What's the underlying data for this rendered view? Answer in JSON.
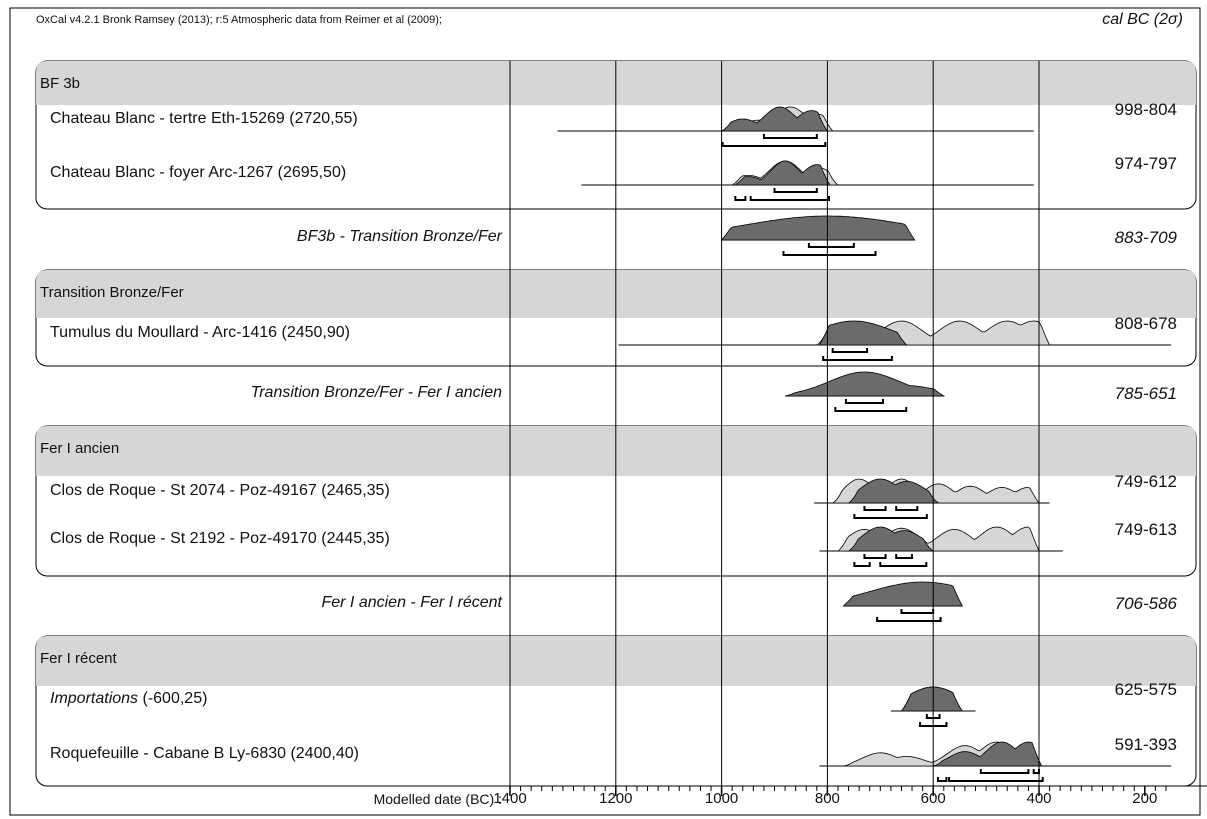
{
  "header": {
    "software": "OxCal v4.2.1 Bronk Ramsey (2013); r:5 Atmospheric data from Reimer et al (2009);",
    "unit_label": "cal BC (2σ)"
  },
  "colors": {
    "prior": "#d6d6d6",
    "posterior": "#6b6b6b",
    "band": "#d6d6d6",
    "line": "#000000"
  },
  "chart_data": {
    "type": "oxcal-multiplot",
    "xlabel": "Modelled date (BC) :",
    "xlim": [
      1400,
      150
    ],
    "x_ticks": [
      1400,
      1200,
      1000,
      800,
      600,
      400,
      200
    ],
    "sections": [
      {
        "title": "BF 3b",
        "rows": [
          {
            "label": "Chateau Blanc - tertre Eth-15269 (2720,55)",
            "range": "998-804",
            "extent": [
              1310,
              410
            ],
            "prior": {
              "start": 1000,
              "end": 790,
              "peaks": [
                [
                  930,
                  0.45
                ],
                [
                  870,
                  1.0
                ],
                [
                  820,
                  0.7
                ]
              ]
            },
            "posterior": {
              "start": 1000,
              "end": 800,
              "peaks": [
                [
                  960,
                  0.5
                ],
                [
                  890,
                  1.0
                ],
                [
                  830,
                  0.85
                ]
              ]
            },
            "brackets": [
              [
                [
                  920,
                  820
                ]
              ],
              [
                [
                  998,
                  804
                ]
              ]
            ]
          },
          {
            "label": "Chateau Blanc - foyer Arc-1267 (2695,50)",
            "range": "974-797",
            "extent": [
              1265,
              410
            ],
            "prior": {
              "start": 980,
              "end": 780,
              "peaks": [
                [
                  950,
                  0.4
                ],
                [
                  880,
                  1.0
                ],
                [
                  820,
                  0.75
                ]
              ]
            },
            "posterior": {
              "start": 975,
              "end": 795,
              "peaks": [
                [
                  950,
                  0.35
                ],
                [
                  880,
                  1.0
                ],
                [
                  820,
                  0.85
                ]
              ]
            },
            "brackets": [
              [
                [
                  900,
                  820
                ]
              ],
              [
                [
                  974,
                  955
                ],
                [
                  945,
                  797
                ]
              ]
            ]
          }
        ]
      },
      {
        "boundary": "BF3b - Transition Bronze/Fer",
        "range": "883-709",
        "extent": [
          1000,
          635
        ],
        "posterior": {
          "start": 1000,
          "end": 635,
          "peaks": [
            [
              800,
              1.0
            ]
          ]
        },
        "brackets": [
          [
            [
              835,
              750
            ]
          ],
          [
            [
              883,
              709
            ]
          ]
        ]
      },
      {
        "title": "Transition Bronze/Fer",
        "rows": [
          {
            "label": "Tumulus du Moullard - Arc-1416 (2450,90)",
            "range": "808-678",
            "extent": [
              1195,
              150
            ],
            "prior": {
              "start": 820,
              "end": 380,
              "peaks": [
                [
                  760,
                  0.9
                ],
                [
                  660,
                  1.0
                ],
                [
                  550,
                  1.0
                ],
                [
                  460,
                  1.0
                ],
                [
                  410,
                  1.0
                ]
              ]
            },
            "posterior": {
              "start": 815,
              "end": 650,
              "peaks": [
                [
                  750,
                  1.0
                ]
              ]
            },
            "brackets": [
              [
                [
                  790,
                  725
                ]
              ],
              [
                [
                  808,
                  678
                ]
              ]
            ]
          }
        ]
      },
      {
        "boundary": "Transition Bronze/Fer - Fer I ancien",
        "range": "785-651",
        "extent": [
          880,
          580
        ],
        "posterior": {
          "start": 880,
          "end": 580,
          "peaks": [
            [
              730,
              1.0
            ],
            [
              660,
              0.45
            ]
          ]
        },
        "brackets": [
          [
            [
              765,
              695
            ]
          ],
          [
            [
              785,
              651
            ]
          ]
        ]
      },
      {
        "title": "Fer I ancien",
        "rows": [
          {
            "label": "Clos de Roque - St 2074 - Poz-49167 (2465,35)",
            "range": "749-612",
            "extent": [
              825,
              380
            ],
            "prior": {
              "start": 790,
              "end": 400,
              "peaks": [
                [
                  740,
                  1.0
                ],
                [
                  660,
                  1.0
                ],
                [
                  590,
                  0.8
                ],
                [
                  530,
                  0.7
                ],
                [
                  470,
                  0.65
                ],
                [
                  420,
                  0.65
                ]
              ]
            },
            "posterior": {
              "start": 760,
              "end": 590,
              "peaks": [
                [
                  700,
                  1.0
                ],
                [
                  650,
                  0.9
                ]
              ]
            },
            "brackets": [
              [
                [
                  730,
                  690
                ],
                [
                  670,
                  630
                ]
              ],
              [
                [
                  749,
                  612
                ]
              ]
            ]
          },
          {
            "label": "Clos de Roque - St 2192 - Poz-49170 (2445,35)",
            "range": "749-613",
            "extent": [
              815,
              355
            ],
            "prior": {
              "start": 780,
              "end": 400,
              "peaks": [
                [
                  730,
                  0.9
                ],
                [
                  660,
                  0.95
                ],
                [
                  560,
                  0.9
                ],
                [
                  480,
                  1.0
                ],
                [
                  420,
                  1.0
                ]
              ]
            },
            "posterior": {
              "start": 760,
              "end": 600,
              "peaks": [
                [
                  700,
                  1.0
                ],
                [
                  655,
                  0.85
                ]
              ]
            },
            "brackets": [
              [
                [
                  730,
                  690
                ],
                [
                  670,
                  640
                ]
              ],
              [
                [
                  749,
                  720
                ],
                [
                  700,
                  613
                ]
              ]
            ]
          }
        ]
      },
      {
        "boundary": "Fer I ancien - Fer I récent",
        "range": "706-586",
        "extent": [
          770,
          545
        ],
        "posterior": {
          "start": 770,
          "end": 545,
          "peaks": [
            [
              620,
              1.0
            ]
          ]
        },
        "brackets": [
          [
            [
              660,
              600
            ]
          ],
          [
            [
              706,
              586
            ]
          ]
        ]
      },
      {
        "title": "Fer I récent",
        "rows": [
          {
            "label_italic": "Importations",
            "label_rest": " (-600,25)",
            "range": "625-575",
            "extent": [
              680,
              520
            ],
            "prior": {
              "start": 660,
              "end": 545,
              "peaks": [
                [
                  600,
                  1.0
                ]
              ]
            },
            "posterior": {
              "start": 660,
              "end": 545,
              "peaks": [
                [
                  600,
                  1.0
                ]
              ]
            },
            "brackets": [
              [
                [
                  612,
                  588
                ]
              ],
              [
                [
                  625,
                  575
                ]
              ]
            ]
          },
          {
            "label": "Roquefeuille - Cabane B Ly-6830 (2400,40)",
            "range": "591-393",
            "extent": [
              815,
              150
            ],
            "prior": {
              "start": 770,
              "end": 395,
              "peaks": [
                [
                  700,
                  0.55
                ],
                [
                  650,
                  0.4
                ],
                [
                  540,
                  0.85
                ],
                [
                  480,
                  1.0
                ],
                [
                  420,
                  0.95
                ]
              ]
            },
            "posterior": {
              "start": 600,
              "end": 395,
              "peaks": [
                [
                  540,
                  0.6
                ],
                [
                  470,
                  1.0
                ],
                [
                  420,
                  1.0
                ]
              ]
            },
            "brackets": [
              [
                [
                  510,
                  420
                ],
                [
                  410,
                  400
                ]
              ],
              [
                [
                  591,
                  575
                ],
                [
                  570,
                  393
                ]
              ]
            ]
          }
        ]
      }
    ]
  }
}
